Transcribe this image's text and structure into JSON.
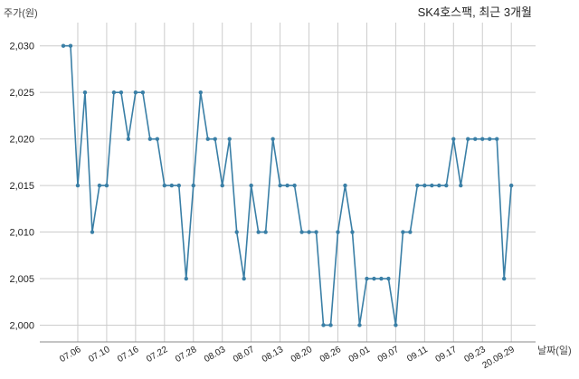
{
  "chart_data": {
    "type": "line",
    "title": "SK4호스팩, 최근 3개월",
    "ylabel": "주가(원)",
    "xlabel": "날짜(일)",
    "ylim": [
      1998.2,
      2032.5
    ],
    "yticks": [
      2000,
      2005,
      2010,
      2015,
      2020,
      2025,
      2030
    ],
    "ytick_labels": [
      "2,000",
      "2,005",
      "2,010",
      "2,015",
      "2,020",
      "2,025",
      "2,030"
    ],
    "xtick_labels": [
      "07.06",
      "07.10",
      "07.16",
      "07.22",
      "07.28",
      "08.03",
      "08.07",
      "08.13",
      "08.20",
      "08.26",
      "09.01",
      "09.07",
      "09.11",
      "09.17",
      "09.23",
      "20.09.29"
    ],
    "xtick_index": [
      2,
      6,
      10,
      14,
      18,
      22,
      26,
      30,
      34,
      38,
      42,
      46,
      50,
      54,
      58,
      62
    ],
    "line_color": "#3a7fa6",
    "grid": true,
    "series": [
      {
        "values": [
          2030,
          2030,
          2015,
          2025,
          2010,
          2015,
          2015,
          2025,
          2025,
          2020,
          2025,
          2025,
          2020,
          2020,
          2015,
          2015,
          2015,
          2005,
          2015,
          2025,
          2020,
          2020,
          2015,
          2020,
          2010,
          2005,
          2015,
          2010,
          2010,
          2020,
          2015,
          2015,
          2015,
          2010,
          2010,
          2010,
          2000,
          2000,
          2010,
          2015,
          2010,
          2000,
          2005,
          2005,
          2005,
          2005,
          2000,
          2010,
          2010,
          2015,
          2015,
          2015,
          2015,
          2015,
          2020,
          2015,
          2020,
          2020,
          2020,
          2020,
          2020,
          2005,
          2015
        ]
      }
    ]
  }
}
